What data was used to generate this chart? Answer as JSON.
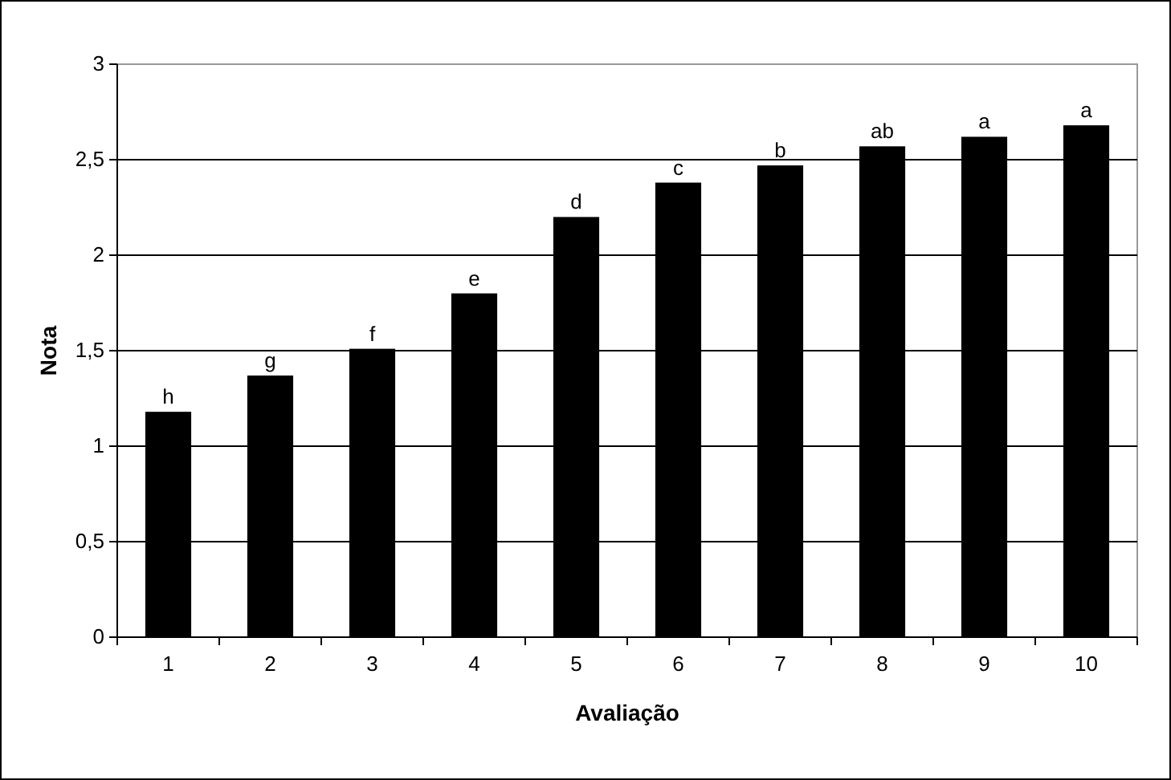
{
  "chart_data": {
    "type": "bar",
    "xlabel": "Avaliação",
    "ylabel": "Nota",
    "categories": [
      "1",
      "2",
      "3",
      "4",
      "5",
      "6",
      "7",
      "8",
      "9",
      "10"
    ],
    "values": [
      1.18,
      1.37,
      1.51,
      1.8,
      2.2,
      2.38,
      2.47,
      2.57,
      2.62,
      2.68
    ],
    "color": "#000000",
    "ylim": [
      0,
      3
    ],
    "yticks": [
      0,
      {
        "value": 0.5,
        "label": "0,5"
      },
      1,
      {
        "value": 1.5,
        "label": "1,5"
      },
      2,
      {
        "value": 2.5,
        "label": "2,5"
      },
      3
    ],
    "grid": "y",
    "annotations": [
      {
        "text": "h",
        "x": "1",
        "y": 1.18
      },
      {
        "text": "g",
        "x": "2",
        "y": 1.37
      },
      {
        "text": "f",
        "x": "3",
        "y": 1.51
      },
      {
        "text": "e",
        "x": "4",
        "y": 1.8
      },
      {
        "text": "d",
        "x": "5",
        "y": 2.2
      },
      {
        "text": "c",
        "x": "6",
        "y": 2.38
      },
      {
        "text": "b",
        "x": "7",
        "y": 2.47
      },
      {
        "text": "ab",
        "x": "8",
        "y": 2.57
      },
      {
        "text": "a",
        "x": "9",
        "y": 2.62
      },
      {
        "text": "a",
        "x": "10",
        "y": 2.68
      }
    ]
  }
}
